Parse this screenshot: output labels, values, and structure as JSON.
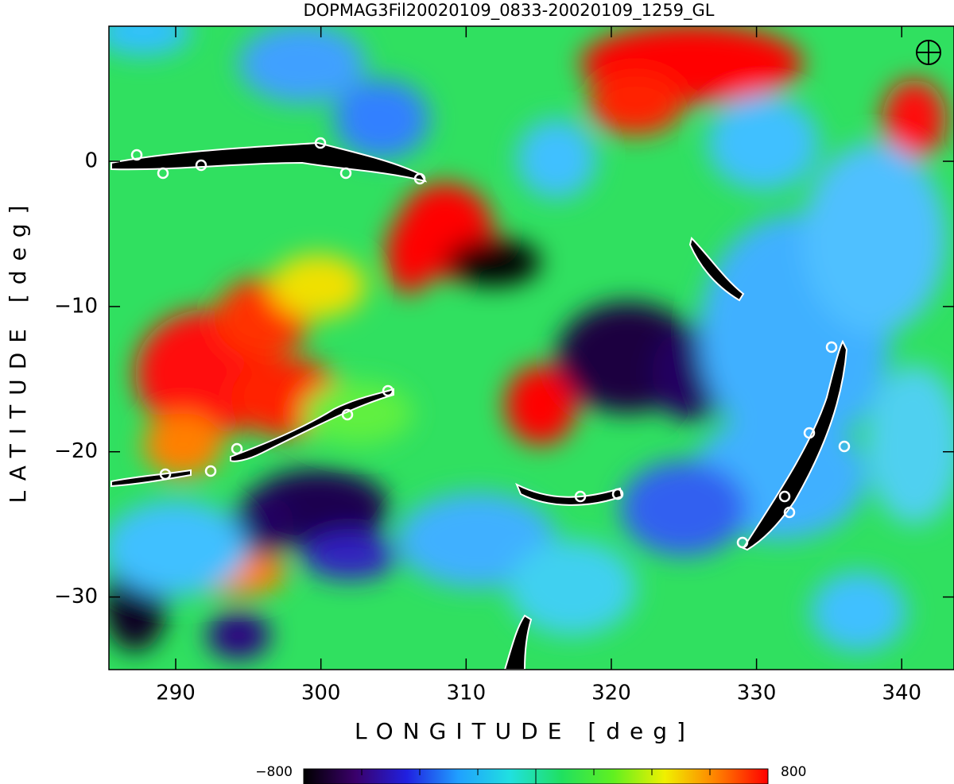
{
  "chart_data": {
    "type": "heatmap",
    "title": "DOPMAG3Fil20020109_0833-20020109_1259_GL",
    "xlabel": "LONGITUDE  [deg]",
    "ylabel": "LATITUDE  [deg]",
    "xlim": [
      285.4,
      343.6
    ],
    "ylim": [
      -35,
      9.3
    ],
    "xticks": [
      290,
      300,
      310,
      320,
      330,
      340
    ],
    "yticks": [
      0,
      {
        "value": -10,
        "label": "−10"
      },
      {
        "value": -20,
        "label": "−20"
      },
      {
        "value": -30,
        "label": "−30"
      }
    ],
    "clim": [
      -800,
      800
    ],
    "cticks": [
      {
        "value": -800,
        "label": "−800"
      },
      -600,
      -400,
      -200,
      0,
      200,
      400,
      600,
      800
    ],
    "colormap": [
      "#000000",
      "#3a006a",
      "#2020e0",
      "#20a0ff",
      "#20e0e0",
      "#20e060",
      "#60f020",
      "#f0f000",
      "#ff8000",
      "#ff0000"
    ]
  }
}
